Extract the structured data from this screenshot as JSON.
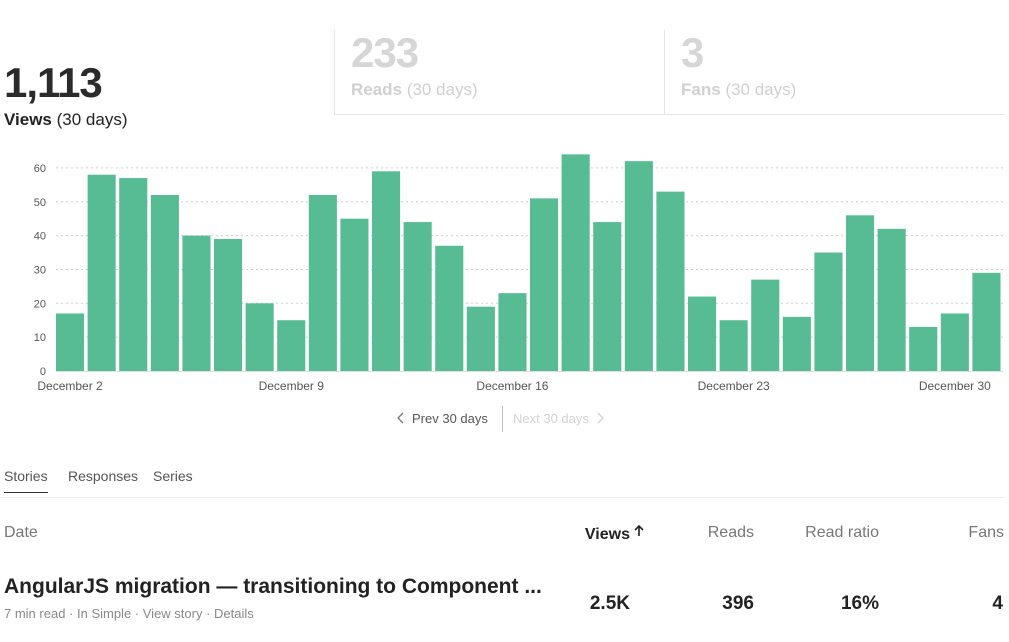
{
  "stats": {
    "views": {
      "number": "1,113",
      "label": "Views",
      "period": "(30 days)"
    },
    "reads": {
      "number": "233",
      "label": "Reads",
      "period": "(30 days)"
    },
    "fans": {
      "number": "3",
      "label": "Fans",
      "period": "(30 days)"
    }
  },
  "colors": {
    "bar": "#57bb94",
    "grid": "#cfcfcf",
    "axis_text": "#555555"
  },
  "chart_data": {
    "type": "bar",
    "title": "",
    "xlabel": "",
    "ylabel": "",
    "ylim": [
      0,
      65
    ],
    "yticks": [
      0,
      10,
      20,
      30,
      40,
      50,
      60
    ],
    "grid": true,
    "x_tick_labels": [
      {
        "label": "December 2",
        "index": 0
      },
      {
        "label": "December 9",
        "index": 7
      },
      {
        "label": "December 16",
        "index": 14
      },
      {
        "label": "December 23",
        "index": 21
      },
      {
        "label": "December 30",
        "index": 28
      }
    ],
    "values": [
      17,
      58,
      57,
      52,
      40,
      39,
      20,
      15,
      52,
      45,
      59,
      44,
      37,
      19,
      23,
      51,
      64,
      44,
      62,
      53,
      22,
      15,
      27,
      16,
      35,
      46,
      42,
      13,
      17,
      29
    ]
  },
  "pager": {
    "prev": "Prev 30 days",
    "next": "Next 30 days"
  },
  "tabs": [
    "Stories",
    "Responses",
    "Series"
  ],
  "table": {
    "headers": {
      "date": "Date",
      "views": "Views",
      "reads": "Reads",
      "ratio": "Read ratio",
      "fans": "Fans"
    },
    "rows": [
      {
        "title": "AngularJS migration — transitioning to Component ...",
        "read_time": "7 min read",
        "publication": "In Simple",
        "view_story": "View story",
        "details": "Details",
        "views": "2.5K",
        "reads": "396",
        "ratio": "16%",
        "fans": "4"
      }
    ]
  }
}
